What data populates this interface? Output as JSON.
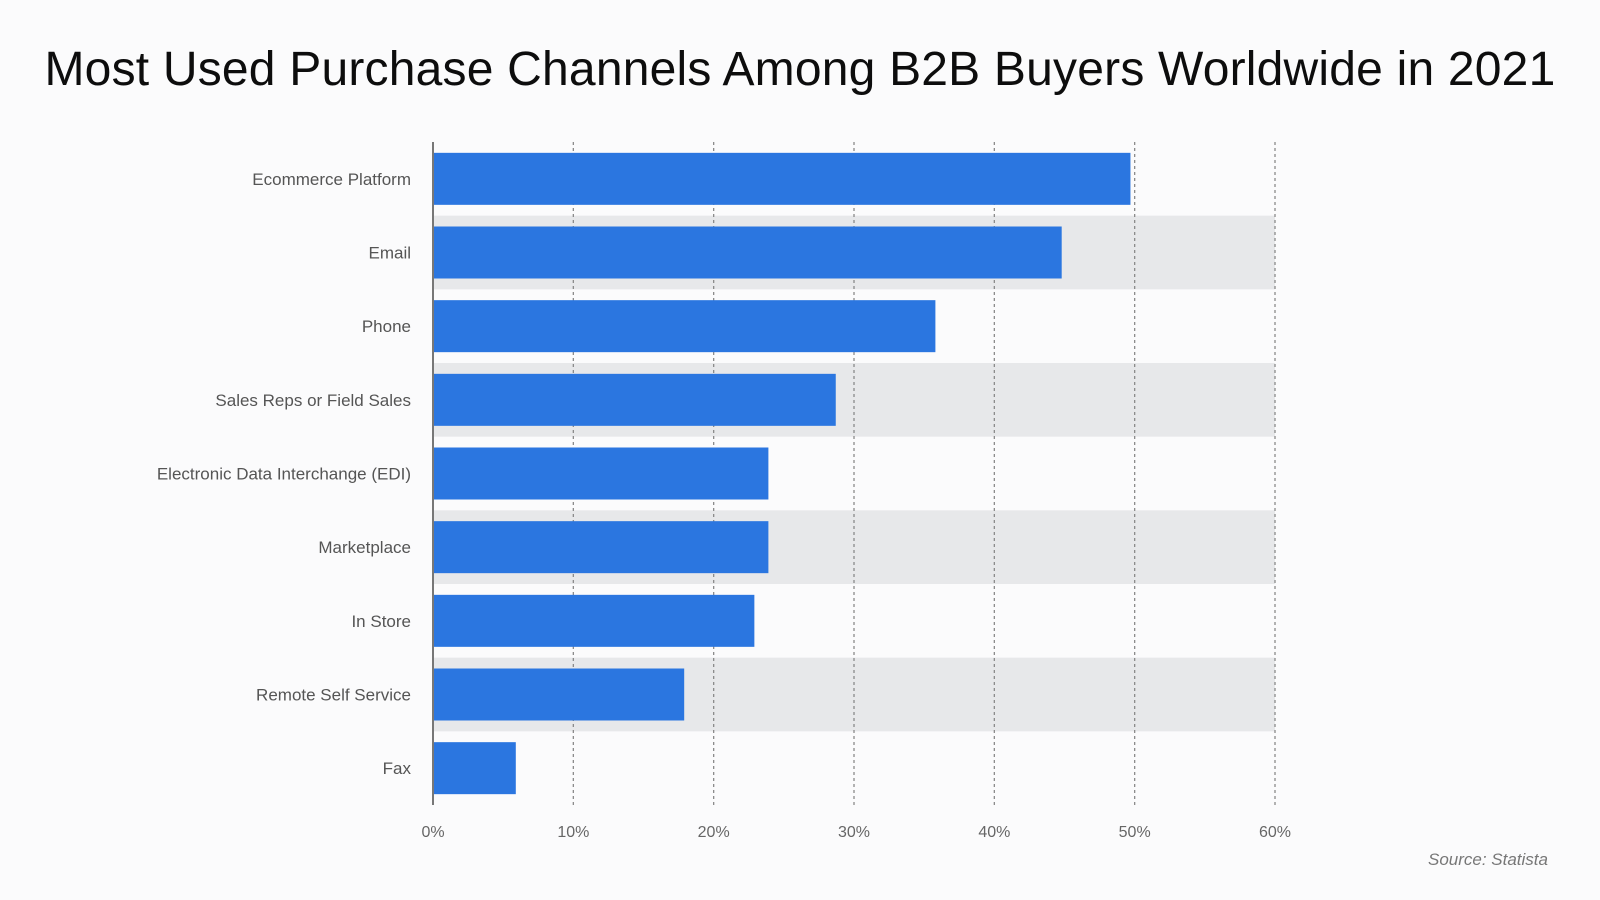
{
  "chart_data": {
    "type": "bar",
    "orientation": "horizontal",
    "title": "Most Used Purchase Channels Among B2B Buyers Worldwide in 2021",
    "categories": [
      "Ecommerce Platform",
      "Email",
      "Phone",
      "Sales Reps or Field Sales",
      "Electronic Data Interchange (EDI)",
      "Marketplace",
      "In Store",
      "Remote Self Service",
      "Fax"
    ],
    "values": [
      49.7,
      44.8,
      35.8,
      28.7,
      23.9,
      23.9,
      22.9,
      17.9,
      5.9
    ],
    "xlim": [
      0,
      60
    ],
    "xticks": [
      "0%",
      "10%",
      "20%",
      "30%",
      "40%",
      "50%",
      "60%"
    ],
    "xtick_values": [
      0,
      10,
      20,
      30,
      40,
      50,
      60
    ],
    "grid": "vertical dotted",
    "banded_rows": true,
    "bar_color": "#2b76e0",
    "band_color": "#e7e8ea",
    "source": "Source: Statista"
  }
}
